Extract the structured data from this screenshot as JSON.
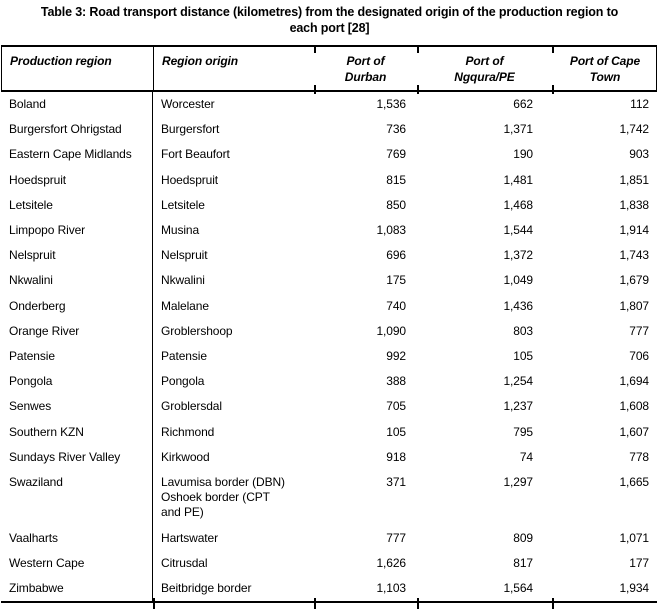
{
  "title": "Table 3: Road transport distance (kilometres) from the designated origin of the production region to\neach port [28]",
  "table": {
    "columns": [
      "Production region",
      "Region origin",
      "Port of\nDurban",
      "Port of\nNgqura/PE",
      "Port of Cape\nTown"
    ],
    "rows": [
      [
        "Boland",
        "Worcester",
        "1,536",
        "662",
        "112"
      ],
      [
        "Burgersfort Ohrigstad",
        "Burgersfort",
        "736",
        "1,371",
        "1,742"
      ],
      [
        "Eastern Cape Midlands",
        "Fort Beaufort",
        "769",
        "190",
        "903"
      ],
      [
        "Hoedspruit",
        "Hoedspruit",
        "815",
        "1,481",
        "1,851"
      ],
      [
        "Letsitele",
        "Letsitele",
        "850",
        "1,468",
        "1,838"
      ],
      [
        "Limpopo River",
        "Musina",
        "1,083",
        "1,544",
        "1,914"
      ],
      [
        "Nelspruit",
        "Nelspruit",
        "696",
        "1,372",
        "1,743"
      ],
      [
        "Nkwalini",
        "Nkwalini",
        "175",
        "1,049",
        "1,679"
      ],
      [
        "Onderberg",
        "Malelane",
        "740",
        "1,436",
        "1,807"
      ],
      [
        "Orange River",
        "Groblershoop",
        "1,090",
        "803",
        "777"
      ],
      [
        "Patensie",
        "Patensie",
        "992",
        "105",
        "706"
      ],
      [
        "Pongola",
        "Pongola",
        "388",
        "1,254",
        "1,694"
      ],
      [
        "Senwes",
        "Groblersdal",
        "705",
        "1,237",
        "1,608"
      ],
      [
        "Southern KZN",
        "Richmond",
        "105",
        "795",
        "1,607"
      ],
      [
        "Sundays River Valley",
        "Kirkwood",
        "918",
        "74",
        "778"
      ],
      [
        "Swaziland",
        "Lavumisa border (DBN)\nOshoek border (CPT\nand PE)",
        "371",
        "1,297",
        "1,665"
      ],
      [
        "Vaalharts",
        "Hartswater",
        "777",
        "809",
        "1,071"
      ],
      [
        "Western Cape",
        "Citrusdal",
        "1,626",
        "817",
        "177"
      ],
      [
        "Zimbabwe",
        "Beitbridge border",
        "1,103",
        "1,564",
        "1,934"
      ]
    ]
  },
  "text_color": "#000000",
  "background_color": "#ffffff"
}
